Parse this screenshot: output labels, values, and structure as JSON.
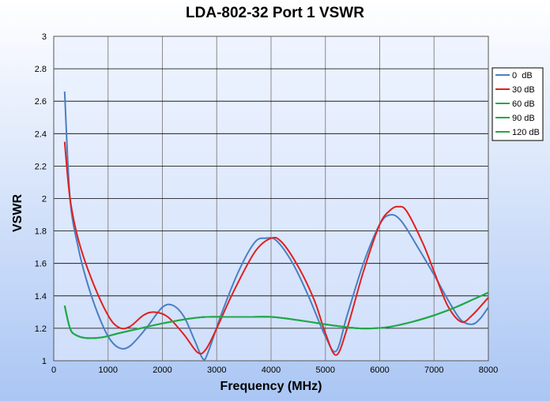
{
  "chart_data": {
    "type": "line",
    "title": "LDA-802-32 Port 1 VSWR",
    "xlabel": "Frequency (MHz)",
    "ylabel": "VSWR",
    "xlim": [
      0,
      8000
    ],
    "ylim": [
      1,
      3
    ],
    "xticks": [
      0,
      1000,
      2000,
      3000,
      4000,
      5000,
      6000,
      7000,
      8000
    ],
    "yticks": [
      1,
      1.2,
      1.4,
      1.6,
      1.8,
      2,
      2.2,
      2.4,
      2.6,
      2.8,
      3
    ],
    "grid": true,
    "legend_position": "right",
    "series": [
      {
        "name": "0  dB",
        "color": "#4a7fc1",
        "points": [
          [
            200,
            2.66
          ],
          [
            300,
            2.0
          ],
          [
            450,
            1.7
          ],
          [
            600,
            1.5
          ],
          [
            800,
            1.3
          ],
          [
            1000,
            1.15
          ],
          [
            1200,
            1.08
          ],
          [
            1400,
            1.09
          ],
          [
            1700,
            1.2
          ],
          [
            2000,
            1.33
          ],
          [
            2200,
            1.34
          ],
          [
            2400,
            1.27
          ],
          [
            2600,
            1.12
          ],
          [
            2750,
            1.01
          ],
          [
            2850,
            1.06
          ],
          [
            3100,
            1.3
          ],
          [
            3400,
            1.55
          ],
          [
            3700,
            1.73
          ],
          [
            3900,
            1.755
          ],
          [
            4100,
            1.74
          ],
          [
            4400,
            1.6
          ],
          [
            4700,
            1.39
          ],
          [
            5000,
            1.15
          ],
          [
            5200,
            1.06
          ],
          [
            5400,
            1.28
          ],
          [
            5700,
            1.6
          ],
          [
            6000,
            1.84
          ],
          [
            6200,
            1.9
          ],
          [
            6400,
            1.86
          ],
          [
            6700,
            1.7
          ],
          [
            7000,
            1.53
          ],
          [
            7300,
            1.35
          ],
          [
            7500,
            1.25
          ],
          [
            7700,
            1.225
          ],
          [
            7850,
            1.26
          ],
          [
            8000,
            1.33
          ]
        ]
      },
      {
        "name": "30 dB",
        "color": "#e02020",
        "points": [
          [
            200,
            2.35
          ],
          [
            300,
            2.0
          ],
          [
            450,
            1.75
          ],
          [
            700,
            1.5
          ],
          [
            1000,
            1.28
          ],
          [
            1200,
            1.205
          ],
          [
            1400,
            1.21
          ],
          [
            1650,
            1.28
          ],
          [
            1850,
            1.3
          ],
          [
            2100,
            1.27
          ],
          [
            2400,
            1.16
          ],
          [
            2650,
            1.05
          ],
          [
            2800,
            1.07
          ],
          [
            3000,
            1.2
          ],
          [
            3300,
            1.42
          ],
          [
            3700,
            1.67
          ],
          [
            4000,
            1.755
          ],
          [
            4200,
            1.73
          ],
          [
            4500,
            1.58
          ],
          [
            4800,
            1.37
          ],
          [
            5000,
            1.17
          ],
          [
            5200,
            1.035
          ],
          [
            5400,
            1.2
          ],
          [
            5700,
            1.55
          ],
          [
            6000,
            1.84
          ],
          [
            6200,
            1.93
          ],
          [
            6350,
            1.95
          ],
          [
            6500,
            1.92
          ],
          [
            6800,
            1.72
          ],
          [
            7000,
            1.55
          ],
          [
            7250,
            1.34
          ],
          [
            7500,
            1.24
          ],
          [
            7700,
            1.28
          ],
          [
            8000,
            1.39
          ]
        ]
      },
      {
        "name": "60 dB",
        "color": "#22a84a",
        "points": [
          [
            200,
            1.34
          ],
          [
            300,
            1.2
          ],
          [
            400,
            1.16
          ],
          [
            600,
            1.14
          ],
          [
            900,
            1.145
          ],
          [
            1200,
            1.17
          ],
          [
            1600,
            1.2
          ],
          [
            2000,
            1.23
          ],
          [
            2500,
            1.26
          ],
          [
            2800,
            1.27
          ],
          [
            3200,
            1.27
          ],
          [
            3600,
            1.27
          ],
          [
            4000,
            1.27
          ],
          [
            4400,
            1.255
          ],
          [
            4800,
            1.235
          ],
          [
            5200,
            1.215
          ],
          [
            5600,
            1.2
          ],
          [
            5900,
            1.2
          ],
          [
            6200,
            1.21
          ],
          [
            6600,
            1.24
          ],
          [
            7000,
            1.28
          ],
          [
            7400,
            1.33
          ],
          [
            7700,
            1.375
          ],
          [
            8000,
            1.42
          ]
        ]
      },
      {
        "name": "90 dB",
        "color": "#22a84a",
        "points": [
          [
            200,
            1.34
          ],
          [
            300,
            1.2
          ],
          [
            400,
            1.16
          ],
          [
            600,
            1.14
          ],
          [
            900,
            1.145
          ],
          [
            1200,
            1.17
          ],
          [
            1600,
            1.2
          ],
          [
            2000,
            1.23
          ],
          [
            2500,
            1.26
          ],
          [
            2800,
            1.27
          ],
          [
            3200,
            1.27
          ],
          [
            3600,
            1.27
          ],
          [
            4000,
            1.27
          ],
          [
            4400,
            1.255
          ],
          [
            4800,
            1.235
          ],
          [
            5200,
            1.215
          ],
          [
            5600,
            1.2
          ],
          [
            5900,
            1.2
          ],
          [
            6200,
            1.21
          ],
          [
            6600,
            1.24
          ],
          [
            7000,
            1.28
          ],
          [
            7400,
            1.33
          ],
          [
            7700,
            1.375
          ],
          [
            8000,
            1.42
          ]
        ]
      },
      {
        "name": "120 dB",
        "color": "#22a84a",
        "points": [
          [
            200,
            1.34
          ],
          [
            300,
            1.2
          ],
          [
            400,
            1.16
          ],
          [
            600,
            1.14
          ],
          [
            900,
            1.145
          ],
          [
            1200,
            1.17
          ],
          [
            1600,
            1.2
          ],
          [
            2000,
            1.23
          ],
          [
            2500,
            1.26
          ],
          [
            2800,
            1.27
          ],
          [
            3200,
            1.27
          ],
          [
            3600,
            1.27
          ],
          [
            4000,
            1.27
          ],
          [
            4400,
            1.255
          ],
          [
            4800,
            1.235
          ],
          [
            5200,
            1.215
          ],
          [
            5600,
            1.2
          ],
          [
            5900,
            1.2
          ],
          [
            6200,
            1.21
          ],
          [
            6600,
            1.24
          ],
          [
            7000,
            1.28
          ],
          [
            7400,
            1.33
          ],
          [
            7700,
            1.375
          ],
          [
            8000,
            1.42
          ]
        ]
      }
    ]
  }
}
